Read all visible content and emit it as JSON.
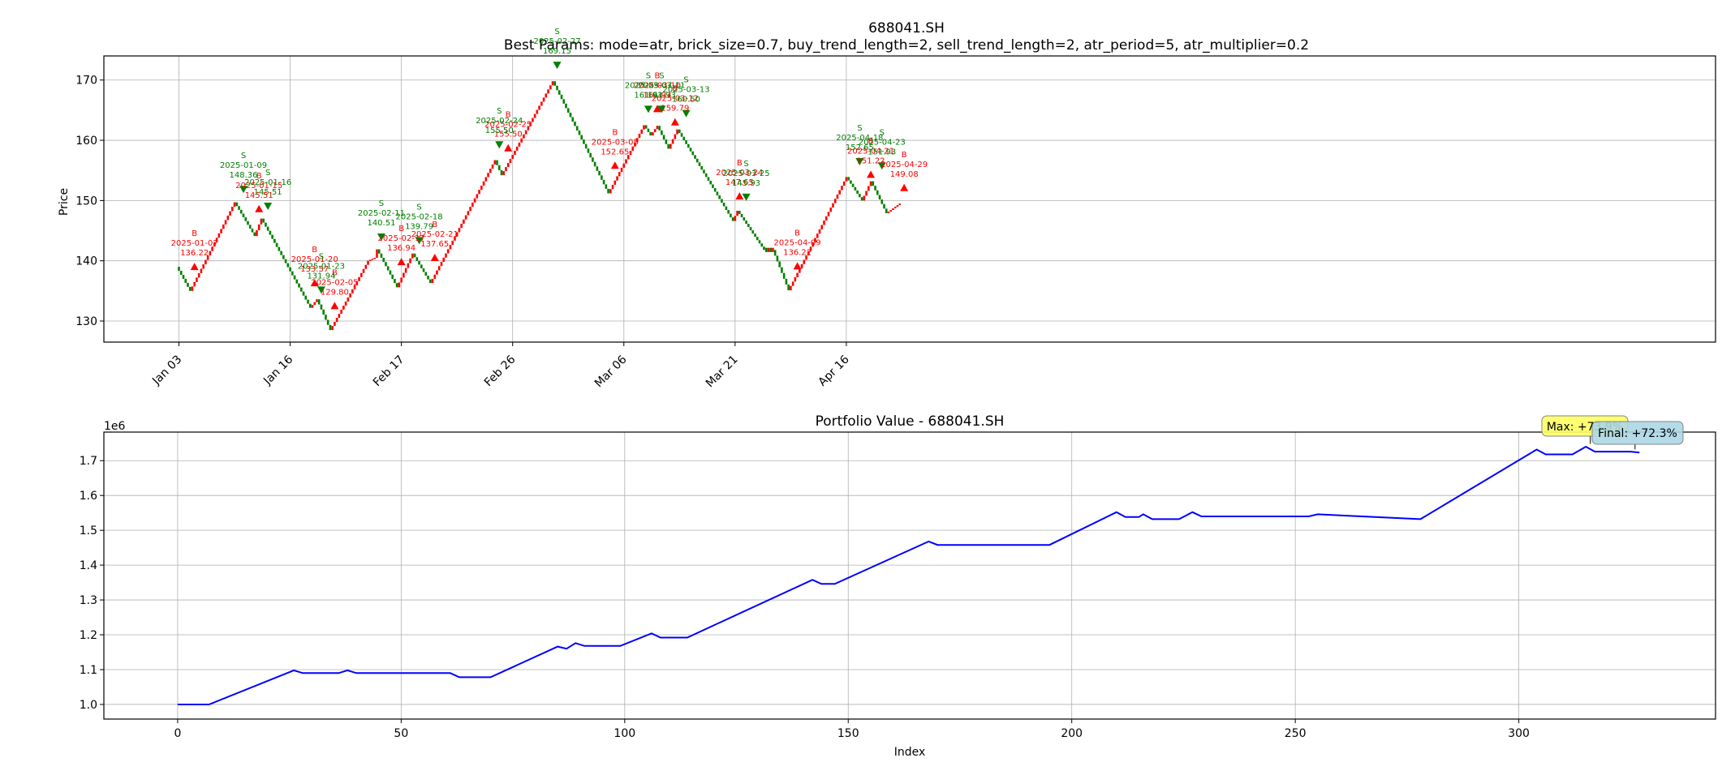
{
  "figure": {
    "title": "688041.SH",
    "subtitle": "Best Params: mode=atr, brick_size=0.7, buy_trend_length=2, sell_trend_length=2, atr_period=5, atr_multiplier=0.2"
  },
  "colors": {
    "up_brick": "#ff0000",
    "down_brick": "#008000",
    "buy_marker": "#ff0000",
    "sell_marker": "#008000",
    "portfolio_line": "#0000ff",
    "max_box": "#ffff66",
    "final_box": "#add8e6",
    "grid": "#b0b0b0"
  },
  "chart_data": [
    {
      "type": "renko",
      "ylabel": "Price",
      "ylim": [
        126.5,
        174.0
      ],
      "yticks": [
        130,
        140,
        150,
        160,
        170
      ],
      "grid": true,
      "xticks": [
        {
          "i": 0,
          "label": "Jan 03"
        },
        {
          "i": 50,
          "label": "Jan 16"
        },
        {
          "i": 100,
          "label": "Feb 17"
        },
        {
          "i": 150,
          "label": "Feb 26"
        },
        {
          "i": 200,
          "label": "Mar 06"
        },
        {
          "i": 250,
          "label": "Mar 21"
        },
        {
          "i": 300,
          "label": "Apr 16"
        }
      ],
      "brick_path": [
        {
          "i": 0,
          "price": 139.0
        },
        {
          "i": 6,
          "price": 135.0
        },
        {
          "i": 26,
          "price": 149.7
        },
        {
          "i": 35,
          "price": 144.1
        },
        {
          "i": 38,
          "price": 147.0
        },
        {
          "i": 60,
          "price": 132.2
        },
        {
          "i": 63,
          "price": 133.6
        },
        {
          "i": 69,
          "price": 128.5
        },
        {
          "i": 86,
          "price": 140.0
        },
        {
          "i": 89,
          "price": 140.5
        },
        {
          "i": 90,
          "price": 141.9
        },
        {
          "i": 99,
          "price": 135.6
        },
        {
          "i": 106,
          "price": 141.2
        },
        {
          "i": 114,
          "price": 136.3
        },
        {
          "i": 143,
          "price": 156.7
        },
        {
          "i": 146,
          "price": 154.2
        },
        {
          "i": 169,
          "price": 169.8
        },
        {
          "i": 194,
          "price": 151.2
        },
        {
          "i": 210,
          "price": 162.5
        },
        {
          "i": 213,
          "price": 160.8
        },
        {
          "i": 216,
          "price": 162.4
        },
        {
          "i": 221,
          "price": 158.6
        },
        {
          "i": 225,
          "price": 161.8
        },
        {
          "i": 250,
          "price": 146.6
        },
        {
          "i": 252,
          "price": 148.3
        },
        {
          "i": 264,
          "price": 141.8
        },
        {
          "i": 268,
          "price": 141.8
        },
        {
          "i": 275,
          "price": 135.1
        },
        {
          "i": 301,
          "price": 153.9
        },
        {
          "i": 308,
          "price": 150.0
        },
        {
          "i": 312,
          "price": 153.2
        },
        {
          "i": 319,
          "price": 147.9
        },
        {
          "i": 325,
          "price": 149.5
        }
      ],
      "buy_trades": [
        {
          "i": 7,
          "y": 139.0,
          "label": "B",
          "date": "2025-01-07",
          "price": "136.22"
        },
        {
          "i": 36,
          "y": 148.6,
          "label": "B",
          "date": "2025-01-15",
          "price": "145.51"
        },
        {
          "i": 61,
          "y": 136.3,
          "label": "B",
          "date": "2025-01-20",
          "price": "133.57"
        },
        {
          "i": 70,
          "y": 132.5,
          "label": "B",
          "date": "2025-02-05",
          "price": "129.80"
        },
        {
          "i": 100,
          "y": 139.8,
          "label": "B",
          "date": "2025-02-17",
          "price": "136.94"
        },
        {
          "i": 115,
          "y": 140.5,
          "label": "B",
          "date": "2025-02-21",
          "price": "137.65"
        },
        {
          "i": 148,
          "y": 158.7,
          "label": "B",
          "date": "2025-02-25",
          "price": "155.50"
        },
        {
          "i": 196,
          "y": 155.8,
          "label": "B",
          "date": "2025-03-05",
          "price": "152.65"
        },
        {
          "i": 215,
          "y": 165.2,
          "label": "B",
          "date": "2025-03-10",
          "price": "161.93"
        },
        {
          "i": 223,
          "y": 163.0,
          "label": "B",
          "date": "2025-03-12",
          "price": "159.79"
        },
        {
          "i": 252,
          "y": 150.7,
          "label": "B",
          "date": "2025-03-24",
          "price": "147.65"
        },
        {
          "i": 278,
          "y": 139.1,
          "label": "B",
          "date": "2025-04-09",
          "price": "136.22"
        },
        {
          "i": 311,
          "y": 154.3,
          "label": "B",
          "date": "2025-04-21",
          "price": "151.22"
        },
        {
          "i": 326,
          "y": 152.1,
          "label": "B",
          "date": "2025-04-29",
          "price": "149.08"
        }
      ],
      "sell_trades": [
        {
          "i": 29,
          "y": 151.9,
          "label": "S",
          "date": "2025-01-09",
          "price": "148.36"
        },
        {
          "i": 40,
          "y": 149.1,
          "label": "S",
          "date": "2025-01-16",
          "price": "145.51"
        },
        {
          "i": 64,
          "y": 135.2,
          "label": "S",
          "date": "2025-01-23",
          "price": "131.94"
        },
        {
          "i": 91,
          "y": 144.0,
          "label": "S",
          "date": "2025-02-11",
          "price": "140.51"
        },
        {
          "i": 108,
          "y": 143.4,
          "label": "S",
          "date": "2025-02-18",
          "price": "139.79"
        },
        {
          "i": 144,
          "y": 159.3,
          "label": "S",
          "date": "2025-02-24",
          "price": "155.50"
        },
        {
          "i": 170,
          "y": 172.5,
          "label": "S",
          "date": "2025-02-27",
          "price": "169.15"
        },
        {
          "i": 211,
          "y": 165.2,
          "label": "S",
          "date": "2025-03-07",
          "price": "161.93"
        },
        {
          "i": 217,
          "y": 165.2,
          "label": "S",
          "date": "2025-03-11",
          "price": "161.93"
        },
        {
          "i": 228,
          "y": 164.5,
          "label": "S",
          "date": "2025-03-13",
          "price": "160.50"
        },
        {
          "i": 255,
          "y": 150.6,
          "label": "S",
          "date": "2025-03-25",
          "price": "145.93"
        },
        {
          "i": 306,
          "y": 156.5,
          "label": "S",
          "date": "2025-04-18",
          "price": "152.65"
        },
        {
          "i": 316,
          "y": 155.8,
          "label": "S",
          "date": "2025-04-23",
          "price": "151.93"
        }
      ]
    },
    {
      "type": "line",
      "title": "Portfolio Value - 688041.SH",
      "xlabel": "Index",
      "ylabel": "",
      "y_offset_text": "1e6",
      "xlim": [
        -16.5,
        344.0
      ],
      "ylim": [
        0.958,
        1.782
      ],
      "xticks": [
        0,
        50,
        100,
        150,
        200,
        250,
        300
      ],
      "yticks": [
        1.0,
        1.1,
        1.2,
        1.3,
        1.4,
        1.5,
        1.6,
        1.7
      ],
      "ytick_labels": [
        "1.0",
        "1.1",
        "1.2",
        "1.3",
        "1.4",
        "1.5",
        "1.6",
        "1.7"
      ],
      "grid": true,
      "series": [
        {
          "x": [
            0,
            7,
            26,
            28,
            36,
            38,
            40,
            61,
            63,
            70,
            85,
            87,
            89,
            91,
            99,
            106,
            108,
            114,
            142,
            144,
            147,
            168,
            170,
            195,
            210,
            212,
            215,
            216,
            218,
            224,
            227,
            229,
            253,
            255,
            278,
            304,
            306,
            312,
            315,
            317,
            325,
            327
          ],
          "y": [
            1.0,
            1.0,
            1.098,
            1.09,
            1.09,
            1.098,
            1.09,
            1.09,
            1.078,
            1.078,
            1.166,
            1.16,
            1.176,
            1.168,
            1.168,
            1.204,
            1.192,
            1.192,
            1.358,
            1.346,
            1.346,
            1.468,
            1.458,
            1.458,
            1.552,
            1.538,
            1.538,
            1.546,
            1.532,
            1.532,
            1.552,
            1.54,
            1.54,
            1.546,
            1.532,
            1.732,
            1.718,
            1.718,
            1.74,
            1.726,
            1.726,
            1.723
          ]
        }
      ],
      "annotations": [
        {
          "text": "Max: +73.9%",
          "i": 316,
          "y": 1.739
        },
        {
          "text": "Final: +72.3%",
          "i": 326,
          "y": 1.723
        }
      ]
    }
  ]
}
